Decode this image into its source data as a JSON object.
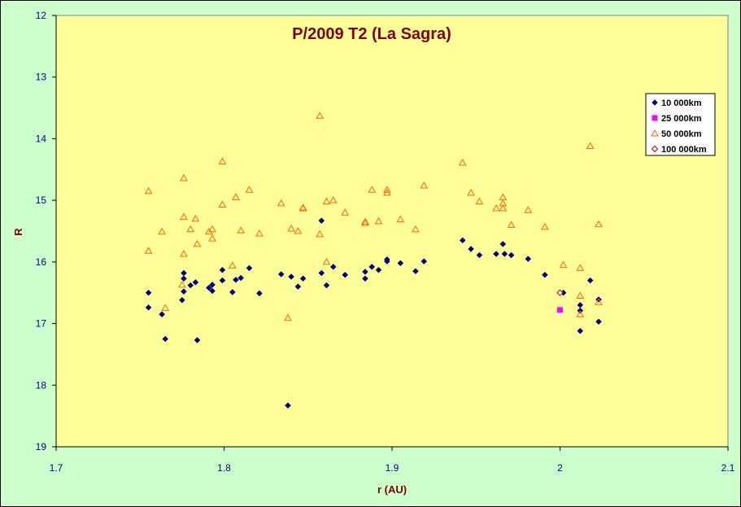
{
  "chart_data": {
    "type": "scatter",
    "title": "P/2009 T2 (La Sagra)",
    "xlabel": "r (AU)",
    "ylabel": "R",
    "xlim": [
      1.7,
      2.1
    ],
    "ylim": [
      12,
      19
    ],
    "y_inverted": true,
    "x_ticks": [
      "1.7",
      "1.8",
      "1.9",
      "2",
      "2.1"
    ],
    "y_ticks": [
      "12",
      "13",
      "14",
      "15",
      "16",
      "17",
      "18",
      "19"
    ],
    "grid": false,
    "legend_position": "top-right",
    "colors": {
      "chart_background": "#ccffcc",
      "plot_background": "#ffff99",
      "title": "#800000",
      "axis_title": "#800000",
      "tick_labels": "#000080"
    },
    "series": [
      {
        "name": "10 000km",
        "marker": "diamond",
        "color": "#000080",
        "points": [
          [
            1.755,
            16.5
          ],
          [
            1.755,
            16.74
          ],
          [
            1.763,
            16.85
          ],
          [
            1.765,
            17.25
          ],
          [
            1.775,
            16.62
          ],
          [
            1.776,
            16.48
          ],
          [
            1.776,
            16.27
          ],
          [
            1.776,
            16.18
          ],
          [
            1.78,
            16.38
          ],
          [
            1.783,
            16.33
          ],
          [
            1.784,
            17.27
          ],
          [
            1.791,
            16.42
          ],
          [
            1.793,
            16.47
          ],
          [
            1.793,
            16.37
          ],
          [
            1.799,
            16.3
          ],
          [
            1.799,
            16.13
          ],
          [
            1.805,
            16.49
          ],
          [
            1.807,
            16.29
          ],
          [
            1.81,
            16.26
          ],
          [
            1.815,
            16.1
          ],
          [
            1.821,
            16.51
          ],
          [
            1.834,
            16.2
          ],
          [
            1.838,
            18.33
          ],
          [
            1.84,
            16.24
          ],
          [
            1.844,
            16.4
          ],
          [
            1.847,
            16.27
          ],
          [
            1.858,
            15.33
          ],
          [
            1.858,
            16.18
          ],
          [
            1.861,
            16.38
          ],
          [
            1.865,
            16.08
          ],
          [
            1.872,
            16.21
          ],
          [
            1.884,
            16.16
          ],
          [
            1.884,
            16.27
          ],
          [
            1.888,
            16.08
          ],
          [
            1.892,
            16.13
          ],
          [
            1.897,
            15.99
          ],
          [
            1.897,
            15.96
          ],
          [
            1.905,
            16.02
          ],
          [
            1.914,
            16.15
          ],
          [
            1.919,
            15.99
          ],
          [
            1.942,
            15.65
          ],
          [
            1.947,
            15.79
          ],
          [
            1.952,
            15.89
          ],
          [
            1.962,
            15.87
          ],
          [
            1.966,
            15.71
          ],
          [
            1.967,
            15.87
          ],
          [
            1.971,
            15.89
          ],
          [
            1.981,
            15.95
          ],
          [
            1.991,
            16.21
          ],
          [
            2.002,
            16.5
          ],
          [
            2.012,
            16.79
          ],
          [
            2.012,
            16.7
          ],
          [
            2.012,
            17.12
          ],
          [
            2.018,
            16.3
          ],
          [
            2.023,
            16.61
          ],
          [
            2.023,
            16.97
          ]
        ]
      },
      {
        "name": "25 000km",
        "marker": "square",
        "color": "#ff00ff",
        "points": [
          [
            2.0,
            16.78
          ]
        ]
      },
      {
        "name": "50 000km",
        "marker": "triangle",
        "color": "#ff6600",
        "points": [
          [
            1.755,
            14.85
          ],
          [
            1.755,
            15.82
          ],
          [
            1.763,
            15.51
          ],
          [
            1.765,
            16.75
          ],
          [
            1.775,
            16.37
          ],
          [
            1.776,
            14.64
          ],
          [
            1.776,
            15.27
          ],
          [
            1.776,
            15.87
          ],
          [
            1.78,
            15.47
          ],
          [
            1.783,
            15.3
          ],
          [
            1.784,
            15.71
          ],
          [
            1.791,
            15.51
          ],
          [
            1.793,
            15.47
          ],
          [
            1.793,
            15.62
          ],
          [
            1.799,
            14.37
          ],
          [
            1.799,
            15.07
          ],
          [
            1.805,
            16.06
          ],
          [
            1.807,
            14.95
          ],
          [
            1.81,
            15.49
          ],
          [
            1.815,
            14.83
          ],
          [
            1.821,
            15.54
          ],
          [
            1.834,
            15.05
          ],
          [
            1.838,
            16.91
          ],
          [
            1.84,
            15.46
          ],
          [
            1.844,
            15.5
          ],
          [
            1.847,
            15.12
          ],
          [
            1.847,
            15.13
          ],
          [
            1.857,
            13.63
          ],
          [
            1.857,
            15.55
          ],
          [
            1.861,
            15.02
          ],
          [
            1.861,
            16.0
          ],
          [
            1.865,
            15.0
          ],
          [
            1.872,
            15.2
          ],
          [
            1.884,
            15.35
          ],
          [
            1.884,
            15.37
          ],
          [
            1.888,
            14.83
          ],
          [
            1.892,
            15.34
          ],
          [
            1.897,
            14.83
          ],
          [
            1.897,
            14.88
          ],
          [
            1.905,
            15.31
          ],
          [
            1.914,
            15.47
          ],
          [
            1.919,
            14.76
          ],
          [
            1.942,
            14.39
          ],
          [
            1.947,
            14.88
          ],
          [
            1.952,
            15.02
          ],
          [
            1.962,
            15.13
          ],
          [
            1.966,
            14.95
          ],
          [
            1.966,
            15.05
          ],
          [
            1.966,
            15.13
          ],
          [
            1.971,
            15.4
          ],
          [
            1.981,
            15.16
          ],
          [
            1.991,
            15.43
          ],
          [
            2.002,
            16.05
          ],
          [
            2.012,
            16.1
          ],
          [
            2.012,
            16.55
          ],
          [
            2.012,
            16.85
          ],
          [
            2.018,
            14.12
          ],
          [
            2.023,
            15.39
          ],
          [
            2.023,
            16.65
          ]
        ]
      },
      {
        "name": "100 000km",
        "marker": "diamond-open",
        "color": "#cc0000",
        "points": [
          [
            2.0,
            16.5
          ]
        ]
      }
    ]
  }
}
